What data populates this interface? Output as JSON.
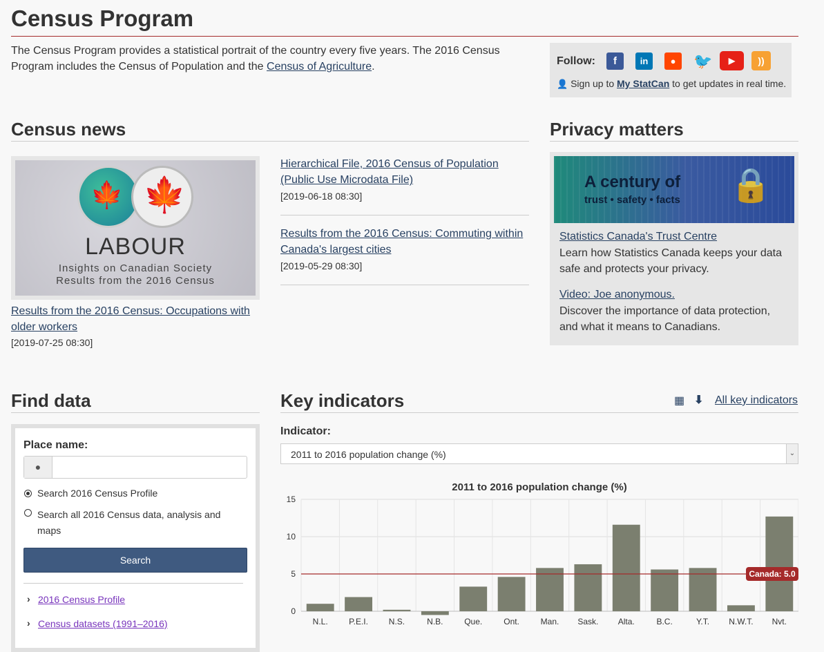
{
  "header": {
    "title": "Census Program",
    "intro_text": "The Census Program provides a statistical portrait of the country every five years. The 2016 Census Program includes the Census of Population and the ",
    "intro_link": "Census of Agriculture",
    "intro_end": "."
  },
  "follow": {
    "label": "Follow:",
    "signup_pre": "Sign up to ",
    "signup_link": "My StatCan",
    "signup_post": " to get updates in real time.",
    "icons": [
      "facebook-icon",
      "linkedin-icon",
      "reddit-icon",
      "twitter-icon",
      "youtube-icon",
      "rss-icon"
    ]
  },
  "census_news": {
    "heading": "Census news",
    "feature": {
      "image_title": "LABOUR",
      "image_sub1": "Insights on Canadian Society",
      "image_sub2": "Results from the 2016 Census",
      "link": "Results from the 2016 Census: Occupations with older workers",
      "date": "[2019-07-25 08:30]"
    },
    "items": [
      {
        "link": "Hierarchical File, 2016 Census of Population (Public Use Microdata File)",
        "date": "[2019-06-18 08:30]"
      },
      {
        "link": "Results from the 2016 Census: Commuting within Canada's largest cities",
        "date": "[2019-05-29 08:30]"
      }
    ]
  },
  "privacy": {
    "heading": "Privacy matters",
    "banner_title": "A century of",
    "banner_sub": "trust • safety • facts",
    "link1": "Statistics Canada's Trust Centre",
    "text1": "Learn how Statistics Canada keeps your data safe and protects your privacy.",
    "link2": "Video: Joe anonymous.",
    "text2": "Discover the importance of data protection, and what it means to Canadians."
  },
  "find_data": {
    "heading": "Find data",
    "place_label": "Place name:",
    "place_value": "",
    "radio1": "Search 2016 Census Profile",
    "radio2": "Search all 2016 Census data, analysis and maps",
    "search_button": "Search",
    "links": [
      "2016 Census Profile",
      "Census datasets (1991–2016)"
    ]
  },
  "key_indicators": {
    "heading": "Key indicators",
    "all_link": "All key indicators",
    "indicator_label": "Indicator:",
    "selected": "2011 to 2016 population change (%)"
  },
  "chart_data": {
    "type": "bar",
    "title": "2011 to 2016 population change (%)",
    "categories": [
      "N.L.",
      "P.E.I.",
      "N.S.",
      "N.B.",
      "Que.",
      "Ont.",
      "Man.",
      "Sask.",
      "Alta.",
      "B.C.",
      "Y.T.",
      "N.W.T.",
      "Nvt."
    ],
    "values": [
      1.0,
      1.9,
      0.2,
      -0.5,
      3.3,
      4.6,
      5.8,
      6.3,
      11.6,
      5.6,
      5.8,
      0.8,
      12.7
    ],
    "ylim": [
      0,
      15
    ],
    "yticks": [
      0,
      5,
      10,
      15
    ],
    "reference_line": {
      "label": "Canada: 5.0",
      "value": 5.0
    },
    "colors": {
      "bar": "#7b7f6f",
      "reference": "#a52a2a"
    }
  }
}
